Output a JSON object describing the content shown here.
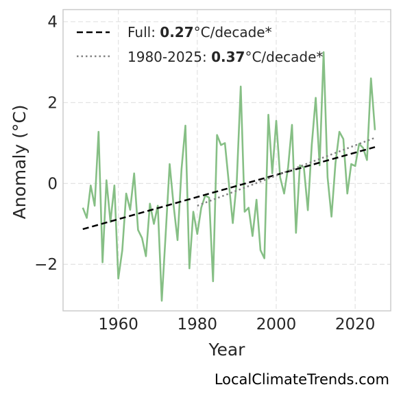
{
  "chart_data": {
    "type": "line",
    "xlabel": "Year",
    "ylabel": "Anomaly (°C)",
    "xlim": [
      1946,
      2029
    ],
    "ylim": [
      -3.15,
      4.3
    ],
    "x_ticks": [
      1960,
      1980,
      2000,
      2020
    ],
    "y_ticks": [
      4,
      2,
      0,
      -2
    ],
    "y_tick_labels": [
      "4",
      "2",
      "0",
      "−2"
    ],
    "grid": true,
    "legend_position": "top-left",
    "colors": {
      "series": "#86bf85",
      "full_trend": "#000000",
      "recent_trend": "#808080",
      "grid": "#e3e3e3",
      "frame": "#cccccc"
    },
    "series": [
      {
        "x": [
          1951,
          1952,
          1953,
          1954,
          1955,
          1956,
          1957,
          1958,
          1959,
          1960,
          1961,
          1962,
          1963,
          1964,
          1965,
          1966,
          1967,
          1968,
          1969,
          1970,
          1971,
          1972,
          1973,
          1974,
          1975,
          1976,
          1977,
          1978,
          1979,
          1980,
          1981,
          1982,
          1983,
          1984,
          1985,
          1986,
          1987,
          1988,
          1989,
          1990,
          1991,
          1992,
          1993,
          1994,
          1995,
          1996,
          1997,
          1998,
          1999,
          2000,
          2001,
          2002,
          2003,
          2004,
          2005,
          2006,
          2007,
          2008,
          2009,
          2010,
          2011,
          2012,
          2013,
          2014,
          2015,
          2016,
          2017,
          2018,
          2019,
          2020,
          2021,
          2022,
          2023,
          2024,
          2025
        ],
        "y": [
          -0.6,
          -0.85,
          -0.05,
          -0.55,
          1.28,
          -1.95,
          0.08,
          -0.95,
          -0.05,
          -2.35,
          -1.65,
          -0.25,
          -0.65,
          0.25,
          -1.15,
          -1.35,
          -1.8,
          -0.5,
          -1.0,
          -0.55,
          -2.9,
          -1.25,
          0.48,
          -0.55,
          -1.4,
          0.35,
          1.43,
          -2.1,
          -0.7,
          -1.25,
          -0.6,
          -0.3,
          -0.35,
          -2.42,
          1.2,
          0.95,
          1.0,
          0.0,
          -0.98,
          0.05,
          2.4,
          -0.7,
          -0.6,
          -1.3,
          -0.4,
          -1.65,
          -1.85,
          1.7,
          0.25,
          1.55,
          0.15,
          -0.25,
          0.4,
          1.45,
          -1.22,
          0.45,
          0.4,
          -0.66,
          0.95,
          2.12,
          0.45,
          3.25,
          0.15,
          -0.82,
          0.5,
          1.28,
          1.1,
          -0.25,
          0.48,
          0.43,
          0.98,
          0.88,
          0.58,
          2.6,
          1.32
        ]
      }
    ],
    "trend_lines": [
      {
        "x": [
          1951,
          2025
        ],
        "y": [
          -1.13,
          0.9
        ]
      },
      {
        "x": [
          1980,
          2025
        ],
        "y": [
          -0.55,
          1.13
        ]
      }
    ],
    "legend": [
      {
        "prefix": "Full: ",
        "bold": "0.27",
        "suffix": "°C/decade*"
      },
      {
        "prefix": "1980-2025: ",
        "bold": "0.37",
        "suffix": "°C/decade*"
      }
    ],
    "credit": "LocalClimateTrends.com"
  }
}
